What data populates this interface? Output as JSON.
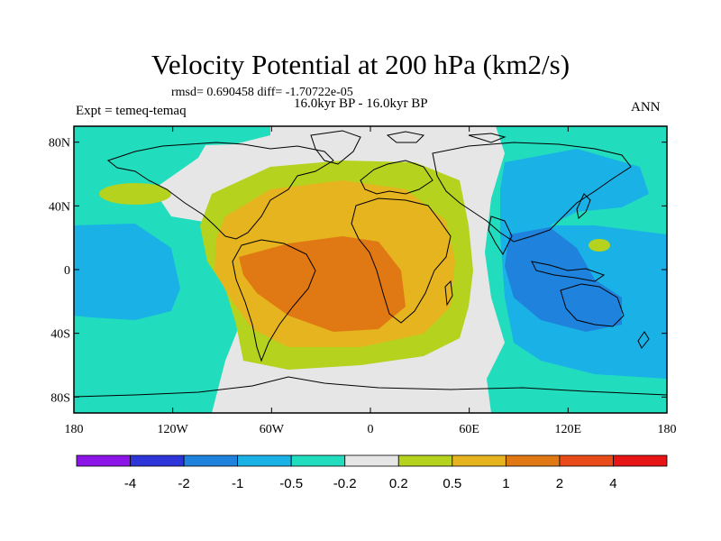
{
  "title": "Velocity Potential at 200 hPa (km2/s)",
  "stats": "rmsd= 0.690458 diff= -1.70722e-05",
  "experiment": "Expt = temeq-temaq",
  "period": "16.0kyr BP - 16.0kyr BP",
  "season": "ANN",
  "x_ticks": [
    "180",
    "120W",
    "60W",
    "0",
    "60E",
    "120E",
    "180"
  ],
  "y_ticks": [
    "80N",
    "40N",
    "0",
    "40S",
    "80S"
  ],
  "colorbar": {
    "labels": [
      "-4",
      "-2",
      "-1",
      "-0.5",
      "-0.2",
      "0.2",
      "0.5",
      "1",
      "2",
      "4"
    ],
    "colors": [
      "#8b14e6",
      "#2d35d8",
      "#1f82dc",
      "#1ab2e6",
      "#22dcbe",
      "#e6e6e6",
      "#b4d21e",
      "#e6b41e",
      "#e07814",
      "#e84a18",
      "#e61414"
    ]
  },
  "palette": {
    "neg_strong": "#1f82dc",
    "neg_mid": "#1ab2e6",
    "neg_weak": "#22dcbe",
    "neutral": "#e6e6e6",
    "pos_weak": "#b4d21e",
    "pos_mid": "#e6b41e",
    "pos_strong": "#e07814"
  }
}
